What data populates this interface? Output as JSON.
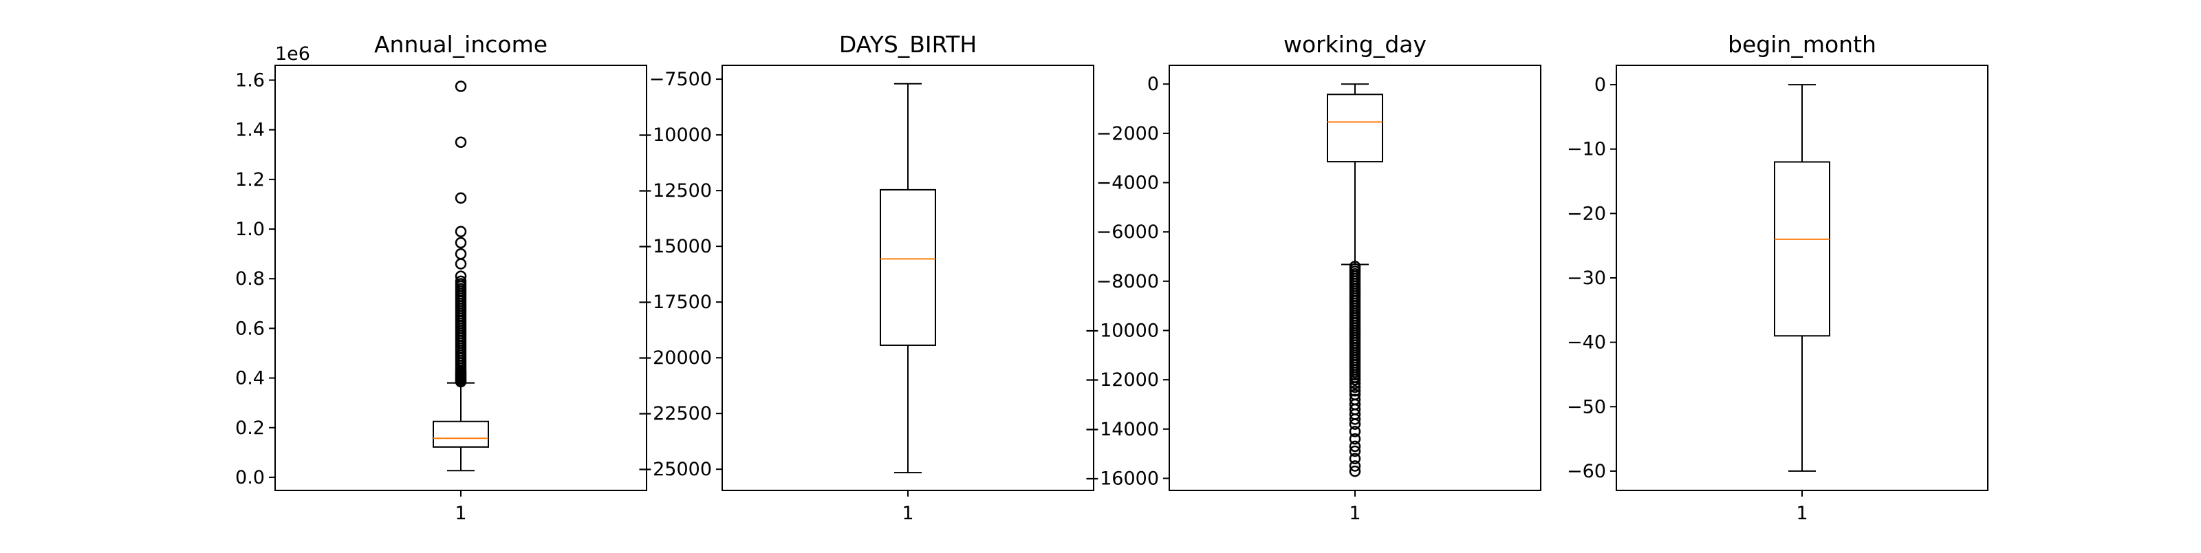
{
  "chart_data": [
    {
      "type": "box",
      "title": "Annual_income",
      "offset_label": "1e6",
      "categories": [
        "1"
      ],
      "ylim": [
        -0.0528,
        1.6596
      ],
      "yticks": [
        0.0,
        0.2,
        0.4,
        0.6,
        0.8,
        1.0,
        1.2,
        1.4,
        1.6
      ],
      "ytick_labels": [
        "0.0",
        "0.2",
        "0.4",
        "0.6",
        "0.8",
        "1.0",
        "1.2",
        "1.4",
        "1.6"
      ],
      "grid": false,
      "box": {
        "whisker_low": 0.027,
        "q1": 0.122,
        "median": 0.157,
        "q3": 0.225,
        "whisker_high": 0.38
      },
      "fliers": [
        0.385,
        0.39,
        0.395,
        0.4,
        0.405,
        0.41,
        0.415,
        0.42,
        0.425,
        0.43,
        0.44,
        0.45,
        0.46,
        0.47,
        0.48,
        0.49,
        0.5,
        0.51,
        0.52,
        0.53,
        0.54,
        0.55,
        0.56,
        0.57,
        0.58,
        0.59,
        0.6,
        0.61,
        0.62,
        0.63,
        0.64,
        0.65,
        0.66,
        0.67,
        0.68,
        0.69,
        0.7,
        0.71,
        0.72,
        0.73,
        0.74,
        0.75,
        0.76,
        0.77,
        0.78,
        0.79,
        0.81,
        0.86,
        0.9,
        0.945,
        0.99,
        1.125,
        1.35,
        1.575
      ]
    },
    {
      "type": "box",
      "title": "DAYS_BIRTH",
      "categories": [
        "1"
      ],
      "ylim": [
        -25950,
        -6880
      ],
      "yticks": [
        -25000,
        -22500,
        -20000,
        -17500,
        -15000,
        -12500,
        -10000,
        -7500
      ],
      "ytick_labels": [
        "−25000",
        "−22500",
        "−20000",
        "−17500",
        "−15000",
        "−12500",
        "−10000",
        "−7500"
      ],
      "grid": false,
      "box": {
        "whisker_low": -25152,
        "q1": -19438,
        "median": -15563,
        "q3": -12462,
        "whisker_high": -7705
      },
      "fliers": []
    },
    {
      "type": "box",
      "title": "working_day",
      "categories": [
        "1"
      ],
      "ylim": [
        -16490,
        760
      ],
      "yticks": [
        -16000,
        -14000,
        -12000,
        -10000,
        -8000,
        -6000,
        -4000,
        -2000,
        0
      ],
      "ytick_labels": [
        "−16000",
        "−14000",
        "−12000",
        "−10000",
        "−8000",
        "−6000",
        "−4000",
        "−2000",
        "0"
      ],
      "grid": false,
      "box": {
        "whisker_low": -7320,
        "q1": -3150,
        "median": -1540,
        "q3": -420,
        "whisker_high": 0
      },
      "fliers": [
        -7400,
        -7500,
        -7600,
        -7700,
        -7800,
        -7900,
        -8000,
        -8100,
        -8200,
        -8300,
        -8400,
        -8500,
        -8600,
        -8700,
        -8800,
        -8900,
        -9000,
        -9100,
        -9200,
        -9300,
        -9400,
        -9500,
        -9600,
        -9700,
        -9800,
        -9900,
        -10000,
        -10100,
        -10200,
        -10300,
        -10400,
        -10500,
        -10600,
        -10700,
        -10800,
        -10900,
        -11000,
        -11100,
        -11200,
        -11300,
        -11400,
        -11500,
        -11600,
        -11700,
        -11800,
        -11900,
        -12000,
        -12150,
        -12300,
        -12450,
        -12600,
        -12800,
        -13000,
        -13200,
        -13400,
        -13600,
        -13800,
        -14100,
        -14400,
        -14700,
        -14900,
        -15200,
        -15500,
        -15713
      ]
    },
    {
      "type": "box",
      "title": "begin_month",
      "categories": [
        "1"
      ],
      "ylim": [
        -63,
        3
      ],
      "yticks": [
        -60,
        -50,
        -40,
        -30,
        -20,
        -10,
        0
      ],
      "ytick_labels": [
        "−60",
        "−50",
        "−40",
        "−30",
        "−20",
        "−10",
        "0"
      ],
      "grid": false,
      "box": {
        "whisker_low": -60,
        "q1": -39,
        "median": -24,
        "q3": -12,
        "whisker_high": 0
      },
      "fliers": []
    }
  ],
  "style": {
    "box_color": "#000000",
    "median_color": "#ff7f0e",
    "background": "#ffffff"
  }
}
